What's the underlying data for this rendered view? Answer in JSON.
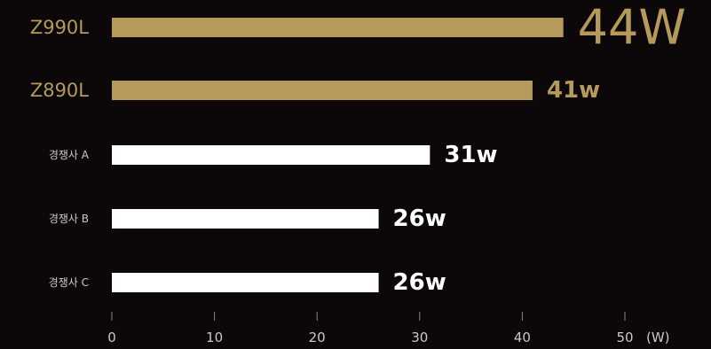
{
  "chart_data": {
    "type": "bar",
    "orientation": "horizontal",
    "categories": [
      "Z990L",
      "Z890L",
      "경쟁사 A",
      "경쟁사 B",
      "경쟁사 C"
    ],
    "values": [
      44,
      41,
      31,
      26,
      26
    ],
    "value_labels": [
      "44W",
      "41w",
      "31w",
      "26w",
      "26w"
    ],
    "highlight": [
      true,
      true,
      false,
      false,
      false
    ],
    "xlim": [
      0,
      50
    ],
    "x_ticks": [
      0,
      10,
      20,
      30,
      40,
      50
    ],
    "x_unit": "(W)",
    "grid": false,
    "colors": {
      "highlight": "#b59a5b",
      "competitor": "#ffffff",
      "axis_text": "#cfc8c3",
      "background": "#0c0709"
    }
  }
}
